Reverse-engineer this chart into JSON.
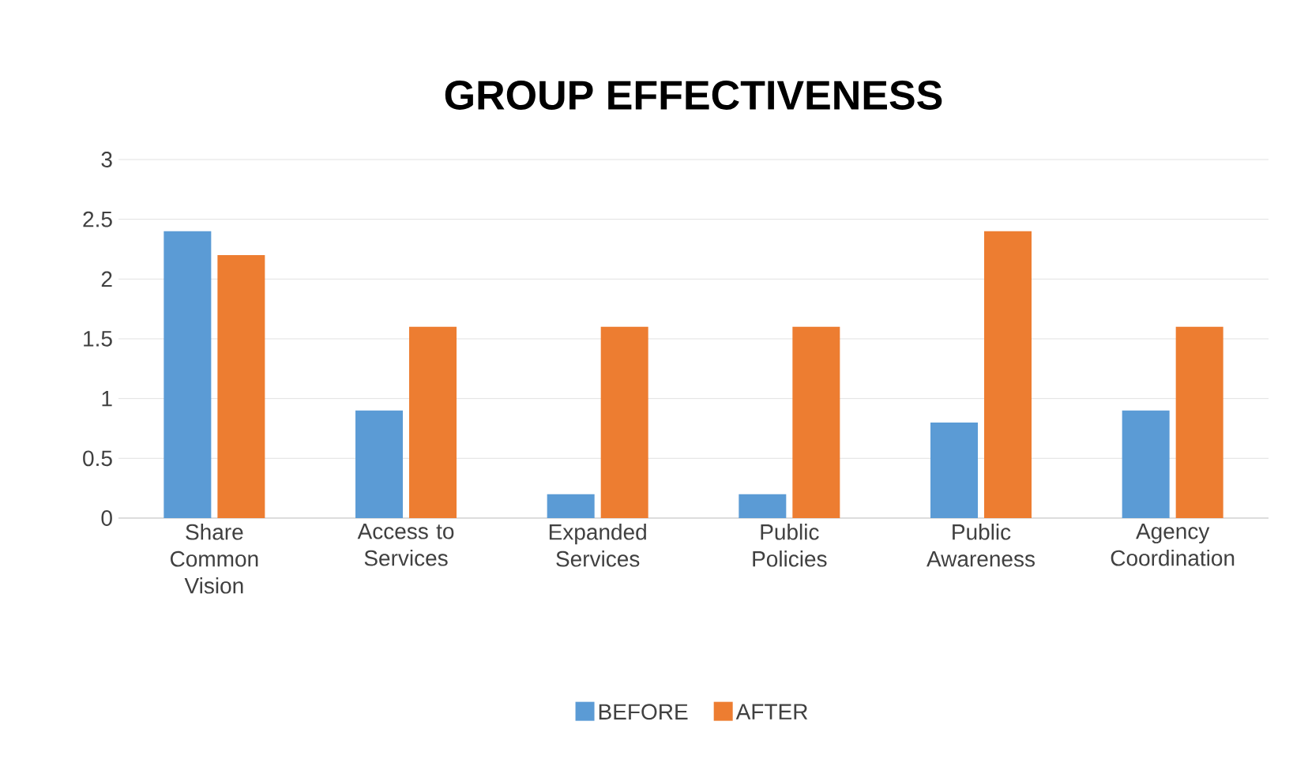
{
  "chart_data": {
    "type": "bar",
    "title": "GROUP EFFECTIVENESS",
    "categories": [
      "Share Common Vision",
      "Access to Services",
      "Expanded Services",
      "Public Policies",
      "Public Awareness",
      "Agency Coordination"
    ],
    "series": [
      {
        "name": "BEFORE",
        "color": "#5b9bd5",
        "values": [
          2.4,
          0.9,
          0.2,
          0.2,
          0.8,
          0.9
        ]
      },
      {
        "name": "AFTER",
        "color": "#ed7d31",
        "values": [
          2.2,
          1.6,
          1.6,
          1.6,
          2.4,
          1.6
        ]
      }
    ],
    "ylim": [
      0,
      3
    ],
    "yticks": [
      0,
      0.5,
      1,
      1.5,
      2,
      2.5,
      3
    ],
    "grid": "y",
    "legend": "bottom"
  }
}
